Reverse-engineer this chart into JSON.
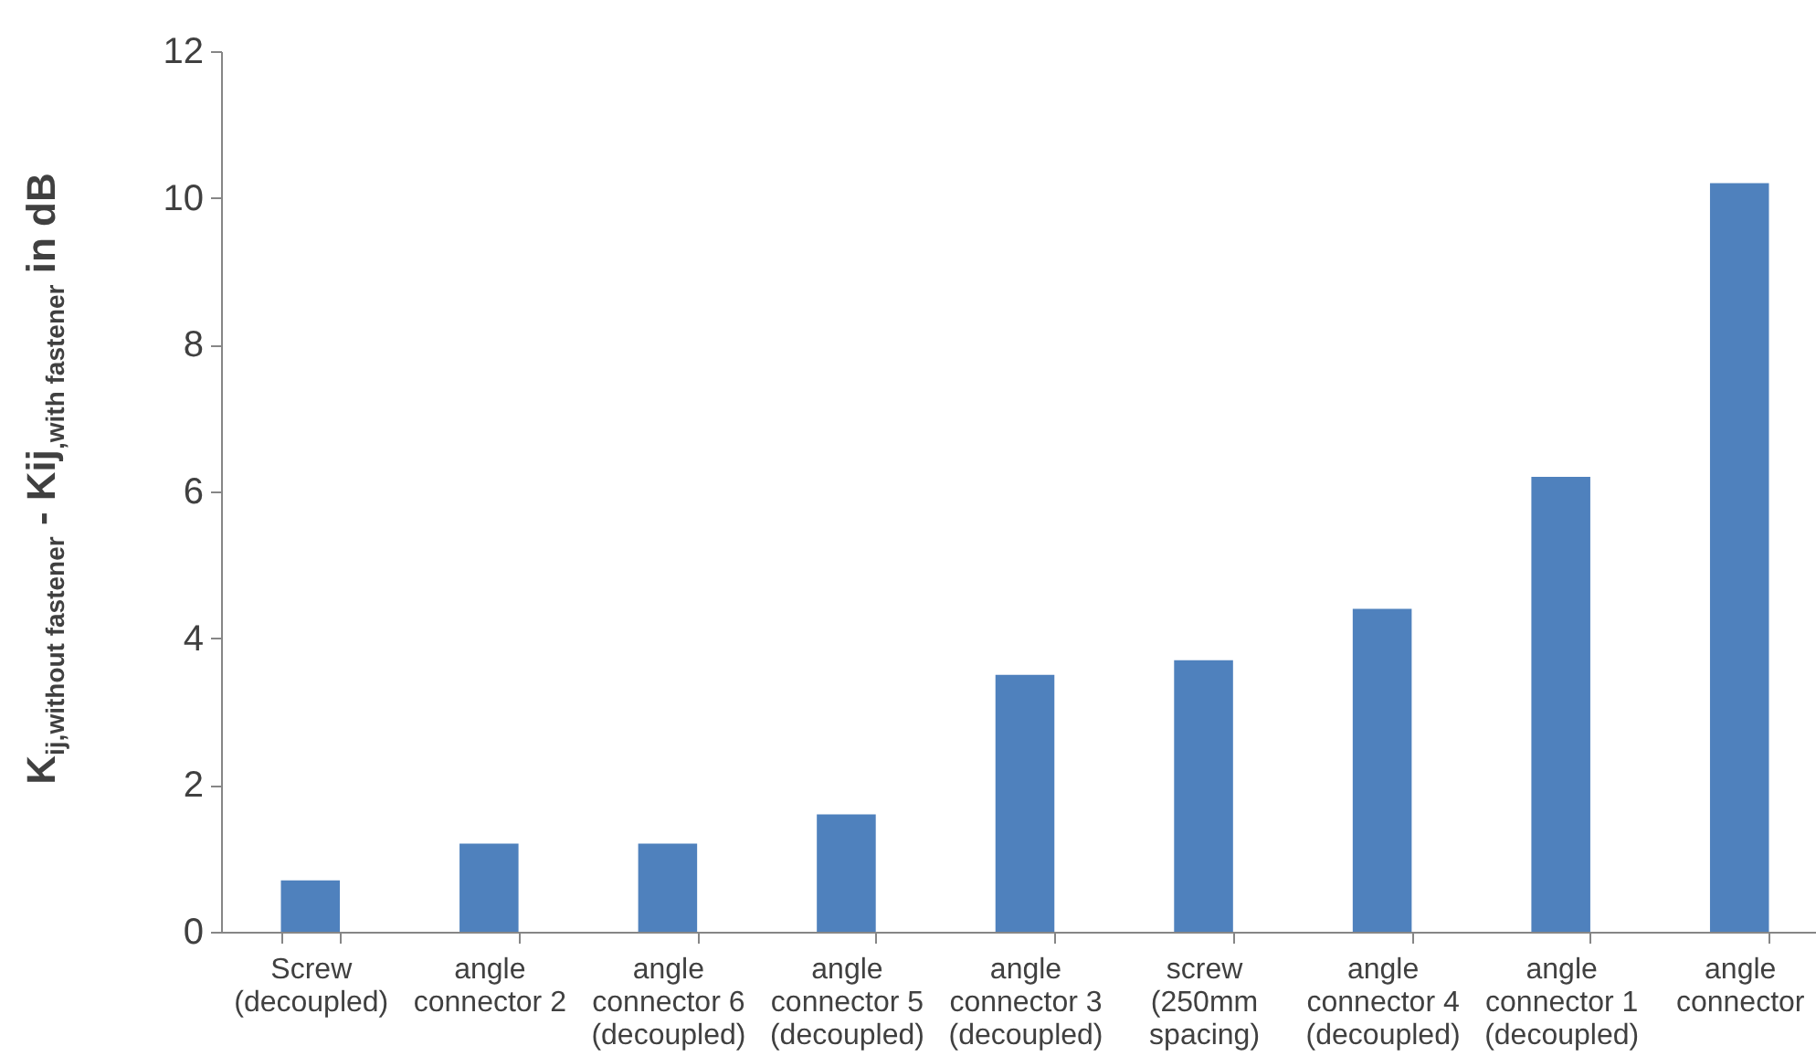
{
  "chart_data": {
    "type": "bar",
    "ylabel": "K$_{ij,without fastener}$ - Kij$_{,with fastener}$ in dB",
    "categories": [
      "Screw\n(decoupled)",
      "angle\nconnector 2",
      "angle\nconnector 6\n(decoupled)",
      "angle\nconnector 5\n(decoupled)",
      "angle\nconnector 3\n(decoupled)",
      "screw\n(250mm\nspacing)",
      "angle\nconnector 4\n(decoupled)",
      "angle\nconnector 1\n(decoupled)",
      "angle\nconnector"
    ],
    "values": [
      0.7,
      1.2,
      1.2,
      1.6,
      3.5,
      3.7,
      4.4,
      6.2,
      10.2
    ],
    "color": "#4f81bd",
    "ylim": [
      0,
      12
    ],
    "yticks": [
      0,
      2,
      4,
      6,
      8,
      10,
      12
    ],
    "grid": false
  }
}
